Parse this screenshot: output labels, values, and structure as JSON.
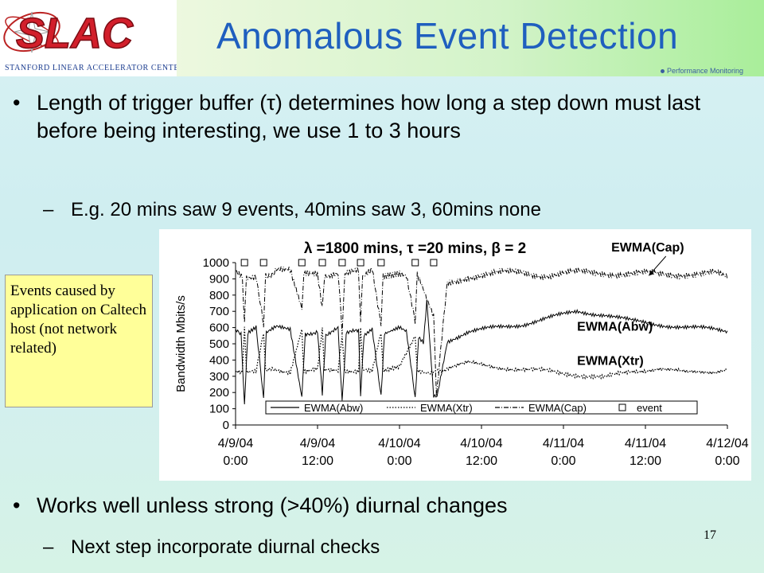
{
  "header": {
    "title": "Anomalous Event Detection",
    "logo_text": "SLAC",
    "logo_subtitle": "Stanford Linear Accelerator Center",
    "subnote": "Performance Monitoring"
  },
  "bullets": [
    {
      "text": "Length of trigger buffer (τ) determines how long a step down must last before being interesting, we use 1 to 3 hours"
    },
    {
      "text": "Works well unless strong (>40%) diurnal changes"
    }
  ],
  "subbullets": [
    {
      "text": "E.g. 20 mins saw 9 events, 40mins saw 3, 60mins none"
    },
    {
      "text": "Next step incorporate diurnal checks"
    }
  ],
  "note": {
    "text": "Events caused by application on Caltech host (not network related)"
  },
  "page_number": "17",
  "chart_data": {
    "type": "line",
    "title": "λ =1800 mins, τ =20 mins, β = 2",
    "ylabel": "Bandwidth Mbits/s",
    "xlabel": "",
    "ylim": [
      0,
      1000
    ],
    "yticks": [
      0,
      100,
      200,
      300,
      400,
      500,
      600,
      700,
      800,
      900,
      1000
    ],
    "xticks": [
      {
        "line1": "4/9/04",
        "line2": "0:00"
      },
      {
        "line1": "4/9/04",
        "line2": "12:00"
      },
      {
        "line1": "4/10/04",
        "line2": "0:00"
      },
      {
        "line1": "4/10/04",
        "line2": "12:00"
      },
      {
        "line1": "4/11/04",
        "line2": "0:00"
      },
      {
        "line1": "4/11/04",
        "line2": "12:00"
      },
      {
        "line1": "4/12/04",
        "line2": "0:00"
      }
    ],
    "xlim_hours": [
      0,
      72
    ],
    "annotations": [
      {
        "text": "EWMA(Cap)",
        "x_hours": 55,
        "y": 1000
      },
      {
        "text": "EWMA(Abw)",
        "x_hours": 50,
        "y": 580
      },
      {
        "text": "EWMA(Xtr)",
        "x_hours": 50,
        "y": 370
      }
    ],
    "legend": {
      "placement": "bottom",
      "entries": [
        "EWMA(Abw)",
        "EWMA(Xtr)",
        "EWMA(Cap)",
        "event"
      ]
    },
    "events_hours": [
      1.3,
      4.1,
      9.7,
      12.7,
      15.6,
      18.3,
      21.3,
      26.3,
      29.0
    ],
    "series": [
      {
        "name": "EWMA(Cap)",
        "style": "dash-dot",
        "x": [
          0,
          1,
          1.3,
          1.6,
          3,
          4.1,
          4.4,
          6,
          8,
          9.7,
          10,
          12,
          12.7,
          13,
          15,
          15.6,
          16,
          18,
          18.3,
          18.6,
          20,
          21.3,
          21.6,
          24,
          25,
          26.3,
          26.6,
          28,
          29,
          29.4,
          31,
          34,
          38,
          42,
          46,
          50,
          54,
          58,
          62,
          66,
          70,
          72
        ],
        "y": [
          950,
          920,
          650,
          900,
          930,
          600,
          920,
          950,
          940,
          700,
          930,
          945,
          720,
          930,
          940,
          560,
          930,
          940,
          620,
          930,
          950,
          640,
          920,
          950,
          930,
          620,
          920,
          760,
          650,
          180,
          870,
          920,
          930,
          940,
          925,
          935,
          940,
          930,
          925,
          935,
          930,
          900
        ]
      },
      {
        "name": "EWMA(Abw)",
        "style": "solid",
        "x": [
          0,
          0.8,
          1.3,
          1.8,
          3,
          4.1,
          4.5,
          6,
          8,
          9.7,
          10.2,
          12,
          12.7,
          13.2,
          15,
          15.6,
          16.2,
          18,
          18.3,
          18.8,
          20,
          21.3,
          21.8,
          24,
          25,
          26.3,
          26.8,
          27.5,
          28,
          29,
          29.5,
          31,
          34,
          38,
          42,
          46,
          50,
          54,
          58,
          62,
          66,
          70,
          72
        ],
        "y": [
          600,
          560,
          120,
          560,
          600,
          160,
          560,
          600,
          590,
          170,
          560,
          580,
          200,
          560,
          590,
          150,
          560,
          580,
          190,
          560,
          600,
          180,
          560,
          600,
          570,
          160,
          540,
          500,
          760,
          180,
          180,
          520,
          570,
          600,
          620,
          660,
          700,
          680,
          640,
          620,
          600,
          590,
          580
        ]
      },
      {
        "name": "EWMA(Xtr)",
        "style": "dotted",
        "x": [
          0,
          1,
          1.3,
          1.6,
          3,
          4.1,
          4.4,
          6,
          8,
          9.7,
          10,
          12,
          12.7,
          13,
          15,
          15.6,
          16,
          18,
          18.3,
          18.6,
          20,
          21.3,
          21.6,
          24,
          26.3,
          26.6,
          28,
          29,
          29.4,
          31,
          34,
          38,
          42,
          46,
          50,
          54,
          58,
          62,
          66,
          70,
          72
        ],
        "y": [
          330,
          320,
          600,
          330,
          320,
          580,
          330,
          340,
          330,
          600,
          330,
          340,
          590,
          330,
          330,
          560,
          330,
          340,
          600,
          330,
          340,
          560,
          330,
          350,
          560,
          340,
          330,
          330,
          330,
          350,
          380,
          360,
          340,
          330,
          310,
          290,
          330,
          350,
          320,
          330,
          350
        ]
      }
    ]
  }
}
